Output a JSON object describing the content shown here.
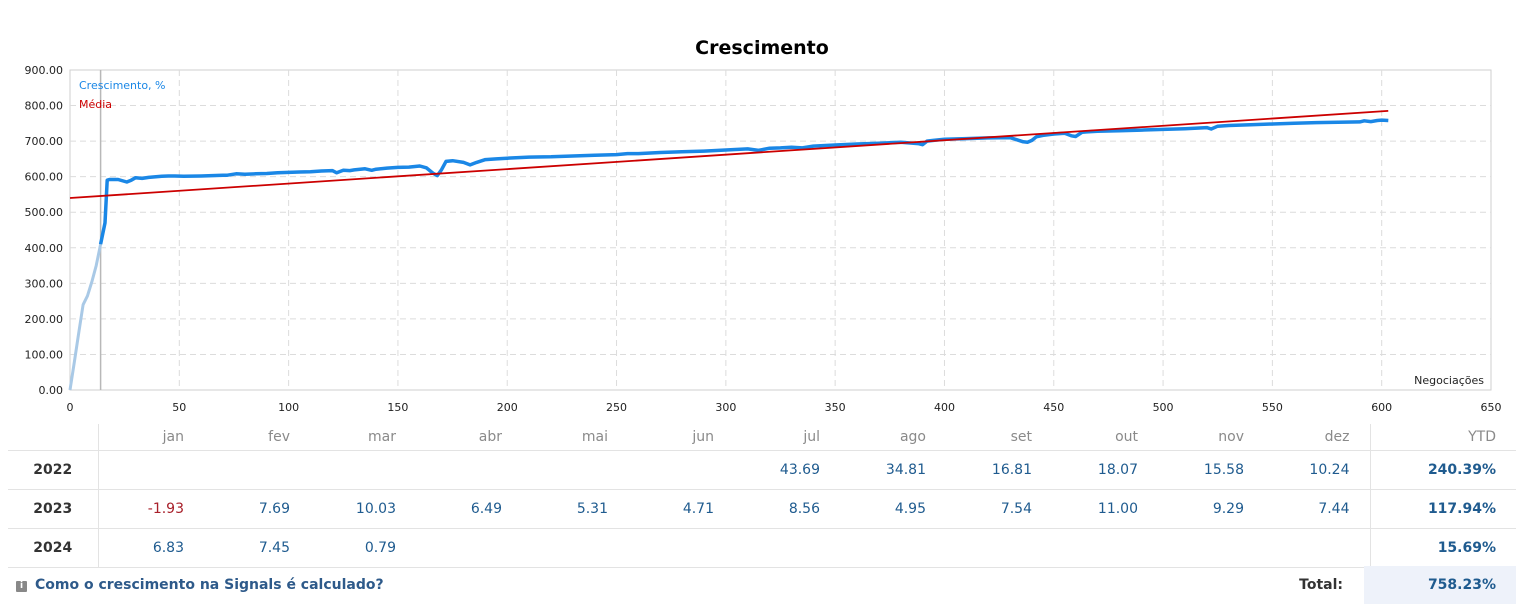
{
  "chart_data": {
    "type": "line",
    "title": "Crescimento",
    "xlabel": "Negociações",
    "ylabel": "",
    "xlim": [
      0,
      650
    ],
    "ylim": [
      0,
      900
    ],
    "x_ticks": [
      0,
      50,
      100,
      150,
      200,
      250,
      300,
      350,
      400,
      450,
      500,
      550,
      600,
      650
    ],
    "y_ticks": [
      "0.00",
      "100.00",
      "200.00",
      "300.00",
      "400.00",
      "500.00",
      "600.00",
      "700.00",
      "800.00",
      "900.00"
    ],
    "grid": true,
    "legend": "top-left",
    "marker_x": 14,
    "series": [
      {
        "name": "Crescimento, %",
        "color": "#1a87e6",
        "faded_color": "#a9c9e6",
        "faded_until": 14,
        "x": [
          0,
          2,
          4,
          6,
          8,
          10,
          12,
          14,
          16,
          17,
          18,
          22,
          26,
          28,
          30,
          33,
          36,
          42,
          45,
          48,
          52,
          60,
          70,
          72,
          76,
          80,
          85,
          90,
          95,
          100,
          105,
          110,
          115,
          120,
          122,
          125,
          128,
          130,
          135,
          138,
          140,
          145,
          150,
          155,
          160,
          163,
          166,
          168,
          170,
          172,
          175,
          180,
          183,
          186,
          190,
          195,
          200,
          210,
          220,
          230,
          240,
          250,
          255,
          260,
          270,
          280,
          290,
          300,
          310,
          315,
          320,
          325,
          330,
          335,
          340,
          350,
          360,
          370,
          380,
          388,
          390,
          392,
          395,
          400,
          410,
          420,
          430,
          433,
          436,
          438,
          440,
          442,
          445,
          450,
          455,
          458,
          460,
          463,
          465,
          470,
          480,
          490,
          500,
          510,
          520,
          522,
          525,
          530,
          540,
          550,
          560,
          570,
          580,
          590,
          592,
          595,
          598,
          600,
          603
        ],
        "values": [
          0,
          80,
          160,
          240,
          265,
          305,
          350,
          410,
          470,
          590,
          592,
          592,
          585,
          590,
          597,
          595,
          598,
          601,
          602,
          602,
          601,
          602,
          604,
          604,
          608,
          607,
          608,
          609,
          611,
          612,
          613,
          614,
          616,
          617,
          611,
          618,
          617,
          619,
          622,
          618,
          621,
          624,
          626,
          627,
          630,
          625,
          610,
          603,
          620,
          643,
          645,
          640,
          633,
          640,
          648,
          650,
          652,
          655,
          656,
          658,
          660,
          662,
          665,
          665,
          668,
          670,
          672,
          675,
          678,
          674,
          680,
          681,
          683,
          681,
          686,
          689,
          692,
          694,
          697,
          693,
          690,
          700,
          702,
          705,
          707,
          709,
          710,
          704,
          698,
          697,
          702,
          712,
          716,
          720,
          722,
          715,
          713,
          725,
          726,
          728,
          729,
          731,
          733,
          735,
          738,
          734,
          742,
          744,
          746,
          748,
          750,
          752,
          753,
          754,
          757,
          755,
          758,
          759,
          758
        ]
      },
      {
        "name": "Média",
        "color": "#cc0000",
        "x": [
          0,
          603
        ],
        "values": [
          540,
          785
        ]
      }
    ]
  },
  "table": {
    "months": [
      "jan",
      "fev",
      "mar",
      "abr",
      "mai",
      "jun",
      "jul",
      "ago",
      "set",
      "out",
      "nov",
      "dez"
    ],
    "ytd_label": "YTD",
    "rows": [
      {
        "year": "2022",
        "values": [
          "",
          "",
          "",
          "",
          "",
          "",
          "43.69",
          "34.81",
          "16.81",
          "18.07",
          "15.58",
          "10.24"
        ],
        "ytd": "240.39%"
      },
      {
        "year": "2023",
        "values": [
          "-1.93",
          "7.69",
          "10.03",
          "6.49",
          "5.31",
          "4.71",
          "8.56",
          "4.95",
          "7.54",
          "11.00",
          "9.29",
          "7.44"
        ],
        "ytd": "117.94%"
      },
      {
        "year": "2024",
        "values": [
          "6.83",
          "7.45",
          "0.79",
          "",
          "",
          "",
          "",
          "",
          "",
          "",
          "",
          ""
        ],
        "ytd": "15.69%"
      }
    ]
  },
  "footer": {
    "help_icon": "info-square-icon",
    "help_link": "Como o crescimento na Signals é calculado?",
    "total_label": "Total:",
    "total_value": "758.23%"
  }
}
